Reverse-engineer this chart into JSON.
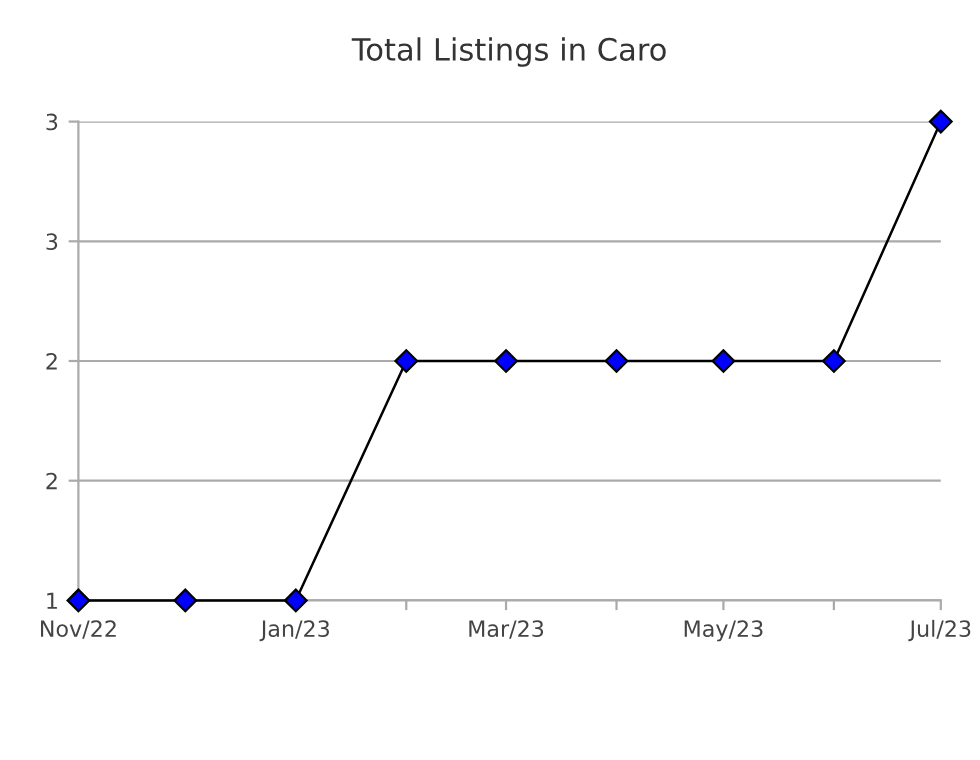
{
  "chart_data": {
    "type": "line",
    "title": "Total Listings in Caro",
    "x": [
      "2022-11",
      "2022-12",
      "2023-01",
      "2023-02",
      "2023-03",
      "2023-04",
      "2023-05",
      "2023-06",
      "2023-07"
    ],
    "series": [
      {
        "color": "#0000ff",
        "values": [
          1,
          1,
          1,
          2,
          2,
          2,
          2,
          2,
          3
        ]
      }
    ],
    "xlim": [
      "2022-11",
      "2023-07"
    ],
    "xticks": [
      {
        "value": "2022-11",
        "label": "Nov/22"
      },
      {
        "value": "2022-12",
        "label": null
      },
      {
        "value": "2023-01",
        "label": "Jan/23"
      },
      {
        "value": "2023-02",
        "label": null
      },
      {
        "value": "2023-03",
        "label": "Mar/23"
      },
      {
        "value": "2023-04",
        "label": null
      },
      {
        "value": "2023-05",
        "label": "May/23"
      },
      {
        "value": "2023-06",
        "label": null
      },
      {
        "value": "2023-07",
        "label": "Jul/23"
      }
    ],
    "ylim": [
      1,
      3
    ],
    "yticks": [
      1,
      {
        "value": 1.5,
        "label": "2"
      },
      2,
      {
        "value": 2.5,
        "label": "3"
      },
      3
    ],
    "grid": "y",
    "marker": "diamond",
    "line_style": "solid",
    "legend": false
  }
}
